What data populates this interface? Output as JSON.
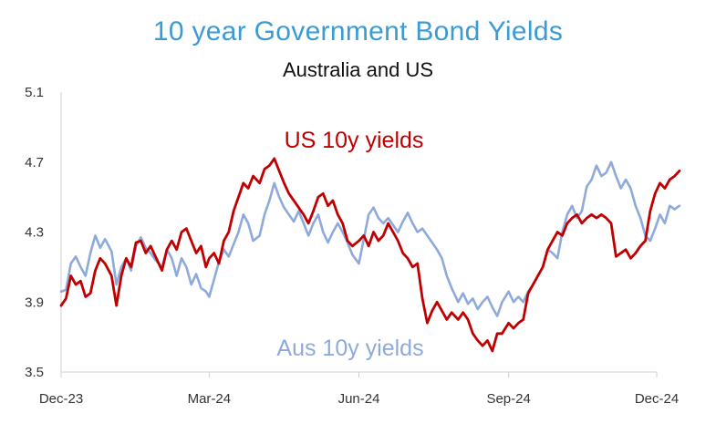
{
  "chart_data": {
    "type": "line",
    "title": "10 year Government Bond Yields",
    "subtitle": "Australia and US",
    "ylim": [
      3.5,
      5.1
    ],
    "yticks": [
      "3.5",
      "3.9",
      "4.3",
      "4.7",
      "5.1"
    ],
    "xlim": [
      "2023-12-01",
      "2024-12-01"
    ],
    "xticks": [
      {
        "date": "2023-12-01",
        "label": "Dec-23"
      },
      {
        "date": "2024-03-01",
        "label": "Mar-24"
      },
      {
        "date": "2024-06-01",
        "label": "Jun-24"
      },
      {
        "date": "2024-09-01",
        "label": "Sep-24"
      },
      {
        "date": "2024-12-01",
        "label": "Dec-24"
      }
    ],
    "grid": false,
    "series": [
      {
        "name": "Aus 10y yields",
        "color": "#8eaadb",
        "points": [
          [
            "2023-12-01",
            3.96
          ],
          [
            "2023-12-04",
            3.97
          ],
          [
            "2023-12-07",
            4.12
          ],
          [
            "2023-12-10",
            4.16
          ],
          [
            "2023-12-13",
            4.1
          ],
          [
            "2023-12-16",
            4.05
          ],
          [
            "2023-12-19",
            4.18
          ],
          [
            "2023-12-22",
            4.28
          ],
          [
            "2023-12-25",
            4.21
          ],
          [
            "2023-12-28",
            4.26
          ],
          [
            "2024-01-01",
            4.19
          ],
          [
            "2024-01-04",
            4.0
          ],
          [
            "2024-01-07",
            4.1
          ],
          [
            "2024-01-10",
            4.15
          ],
          [
            "2024-01-13",
            4.08
          ],
          [
            "2024-01-16",
            4.22
          ],
          [
            "2024-01-19",
            4.27
          ],
          [
            "2024-01-22",
            4.21
          ],
          [
            "2024-01-25",
            4.18
          ],
          [
            "2024-01-28",
            4.14
          ],
          [
            "2024-02-01",
            4.1
          ],
          [
            "2024-02-04",
            4.2
          ],
          [
            "2024-02-07",
            4.15
          ],
          [
            "2024-02-10",
            4.05
          ],
          [
            "2024-02-13",
            4.15
          ],
          [
            "2024-02-16",
            4.1
          ],
          [
            "2024-02-19",
            4.0
          ],
          [
            "2024-02-22",
            4.06
          ],
          [
            "2024-02-25",
            3.98
          ],
          [
            "2024-02-28",
            3.96
          ],
          [
            "2024-03-01",
            3.93
          ],
          [
            "2024-03-04",
            4.03
          ],
          [
            "2024-03-07",
            4.13
          ],
          [
            "2024-03-10",
            4.2
          ],
          [
            "2024-03-13",
            4.16
          ],
          [
            "2024-03-16",
            4.23
          ],
          [
            "2024-03-19",
            4.3
          ],
          [
            "2024-03-22",
            4.4
          ],
          [
            "2024-03-25",
            4.35
          ],
          [
            "2024-03-28",
            4.25
          ],
          [
            "2024-04-01",
            4.28
          ],
          [
            "2024-04-04",
            4.4
          ],
          [
            "2024-04-07",
            4.48
          ],
          [
            "2024-04-10",
            4.58
          ],
          [
            "2024-04-13",
            4.5
          ],
          [
            "2024-04-16",
            4.44
          ],
          [
            "2024-04-19",
            4.4
          ],
          [
            "2024-04-22",
            4.36
          ],
          [
            "2024-04-25",
            4.42
          ],
          [
            "2024-04-28",
            4.35
          ],
          [
            "2024-05-01",
            4.28
          ],
          [
            "2024-05-04",
            4.35
          ],
          [
            "2024-05-07",
            4.4
          ],
          [
            "2024-05-10",
            4.3
          ],
          [
            "2024-05-13",
            4.24
          ],
          [
            "2024-05-16",
            4.3
          ],
          [
            "2024-05-19",
            4.35
          ],
          [
            "2024-05-22",
            4.3
          ],
          [
            "2024-05-25",
            4.24
          ],
          [
            "2024-05-28",
            4.17
          ],
          [
            "2024-06-01",
            4.12
          ],
          [
            "2024-06-04",
            4.26
          ],
          [
            "2024-06-07",
            4.4
          ],
          [
            "2024-06-10",
            4.44
          ],
          [
            "2024-06-13",
            4.38
          ],
          [
            "2024-06-16",
            4.35
          ],
          [
            "2024-06-19",
            4.38
          ],
          [
            "2024-06-22",
            4.34
          ],
          [
            "2024-06-25",
            4.3
          ],
          [
            "2024-06-28",
            4.36
          ],
          [
            "2024-07-01",
            4.41
          ],
          [
            "2024-07-04",
            4.35
          ],
          [
            "2024-07-07",
            4.3
          ],
          [
            "2024-07-10",
            4.32
          ],
          [
            "2024-07-13",
            4.28
          ],
          [
            "2024-07-16",
            4.24
          ],
          [
            "2024-07-19",
            4.2
          ],
          [
            "2024-07-22",
            4.15
          ],
          [
            "2024-07-25",
            4.05
          ],
          [
            "2024-07-28",
            3.98
          ],
          [
            "2024-08-01",
            3.9
          ],
          [
            "2024-08-04",
            3.95
          ],
          [
            "2024-08-07",
            3.89
          ],
          [
            "2024-08-10",
            3.92
          ],
          [
            "2024-08-13",
            3.86
          ],
          [
            "2024-08-16",
            3.9
          ],
          [
            "2024-08-19",
            3.93
          ],
          [
            "2024-08-22",
            3.87
          ],
          [
            "2024-08-25",
            3.82
          ],
          [
            "2024-08-28",
            3.9
          ],
          [
            "2024-09-01",
            3.96
          ],
          [
            "2024-09-04",
            3.9
          ],
          [
            "2024-09-07",
            3.93
          ],
          [
            "2024-09-10",
            3.9
          ],
          [
            "2024-09-13",
            3.96
          ],
          [
            "2024-09-16",
            4.0
          ],
          [
            "2024-09-19",
            4.05
          ],
          [
            "2024-09-22",
            4.1
          ],
          [
            "2024-09-25",
            4.2
          ],
          [
            "2024-09-28",
            4.18
          ],
          [
            "2024-10-01",
            4.15
          ],
          [
            "2024-10-04",
            4.3
          ],
          [
            "2024-10-07",
            4.4
          ],
          [
            "2024-10-10",
            4.45
          ],
          [
            "2024-10-13",
            4.38
          ],
          [
            "2024-10-16",
            4.42
          ],
          [
            "2024-10-19",
            4.56
          ],
          [
            "2024-10-22",
            4.6
          ],
          [
            "2024-10-25",
            4.68
          ],
          [
            "2024-10-28",
            4.62
          ],
          [
            "2024-10-31",
            4.64
          ],
          [
            "2024-11-03",
            4.7
          ],
          [
            "2024-11-06",
            4.62
          ],
          [
            "2024-11-09",
            4.55
          ],
          [
            "2024-11-12",
            4.6
          ],
          [
            "2024-11-15",
            4.55
          ],
          [
            "2024-11-18",
            4.45
          ],
          [
            "2024-11-21",
            4.38
          ],
          [
            "2024-11-24",
            4.28
          ],
          [
            "2024-11-27",
            4.25
          ],
          [
            "2024-11-30",
            4.32
          ],
          [
            "2024-12-03",
            4.4
          ],
          [
            "2024-12-06",
            4.35
          ],
          [
            "2024-12-09",
            4.45
          ],
          [
            "2024-12-12",
            4.43
          ],
          [
            "2024-12-15",
            4.45
          ]
        ]
      },
      {
        "name": "US 10y yields",
        "color": "#c00000",
        "points": [
          [
            "2023-12-01",
            3.88
          ],
          [
            "2023-12-04",
            3.92
          ],
          [
            "2023-12-07",
            4.05
          ],
          [
            "2023-12-10",
            4.0
          ],
          [
            "2023-12-13",
            4.02
          ],
          [
            "2023-12-16",
            3.93
          ],
          [
            "2023-12-19",
            3.95
          ],
          [
            "2023-12-22",
            4.08
          ],
          [
            "2023-12-25",
            4.15
          ],
          [
            "2023-12-28",
            4.12
          ],
          [
            "2024-01-01",
            4.05
          ],
          [
            "2024-01-04",
            3.88
          ],
          [
            "2024-01-07",
            4.05
          ],
          [
            "2024-01-10",
            4.15
          ],
          [
            "2024-01-13",
            4.1
          ],
          [
            "2024-01-16",
            4.24
          ],
          [
            "2024-01-19",
            4.25
          ],
          [
            "2024-01-22",
            4.18
          ],
          [
            "2024-01-25",
            4.22
          ],
          [
            "2024-01-28",
            4.16
          ],
          [
            "2024-02-01",
            4.08
          ],
          [
            "2024-02-04",
            4.2
          ],
          [
            "2024-02-07",
            4.25
          ],
          [
            "2024-02-10",
            4.2
          ],
          [
            "2024-02-13",
            4.3
          ],
          [
            "2024-02-16",
            4.32
          ],
          [
            "2024-02-19",
            4.25
          ],
          [
            "2024-02-22",
            4.18
          ],
          [
            "2024-02-25",
            4.22
          ],
          [
            "2024-02-28",
            4.1
          ],
          [
            "2024-03-01",
            4.15
          ],
          [
            "2024-03-04",
            4.18
          ],
          [
            "2024-03-07",
            4.12
          ],
          [
            "2024-03-10",
            4.25
          ],
          [
            "2024-03-13",
            4.3
          ],
          [
            "2024-03-16",
            4.42
          ],
          [
            "2024-03-19",
            4.5
          ],
          [
            "2024-03-22",
            4.58
          ],
          [
            "2024-03-25",
            4.55
          ],
          [
            "2024-03-28",
            4.62
          ],
          [
            "2024-04-01",
            4.58
          ],
          [
            "2024-04-04",
            4.66
          ],
          [
            "2024-04-07",
            4.68
          ],
          [
            "2024-04-10",
            4.72
          ],
          [
            "2024-04-13",
            4.65
          ],
          [
            "2024-04-16",
            4.58
          ],
          [
            "2024-04-19",
            4.52
          ],
          [
            "2024-04-22",
            4.48
          ],
          [
            "2024-04-25",
            4.44
          ],
          [
            "2024-04-28",
            4.4
          ],
          [
            "2024-05-01",
            4.35
          ],
          [
            "2024-05-04",
            4.42
          ],
          [
            "2024-05-07",
            4.5
          ],
          [
            "2024-05-10",
            4.52
          ],
          [
            "2024-05-13",
            4.45
          ],
          [
            "2024-05-16",
            4.48
          ],
          [
            "2024-05-19",
            4.4
          ],
          [
            "2024-05-22",
            4.35
          ],
          [
            "2024-05-25",
            4.25
          ],
          [
            "2024-05-28",
            4.22
          ],
          [
            "2024-06-01",
            4.25
          ],
          [
            "2024-06-04",
            4.28
          ],
          [
            "2024-06-07",
            4.22
          ],
          [
            "2024-06-10",
            4.3
          ],
          [
            "2024-06-13",
            4.25
          ],
          [
            "2024-06-16",
            4.28
          ],
          [
            "2024-06-19",
            4.35
          ],
          [
            "2024-06-22",
            4.3
          ],
          [
            "2024-06-25",
            4.25
          ],
          [
            "2024-06-28",
            4.18
          ],
          [
            "2024-07-01",
            4.15
          ],
          [
            "2024-07-04",
            4.1
          ],
          [
            "2024-07-07",
            4.12
          ],
          [
            "2024-07-10",
            3.92
          ],
          [
            "2024-07-13",
            3.78
          ],
          [
            "2024-07-16",
            3.85
          ],
          [
            "2024-07-19",
            3.9
          ],
          [
            "2024-07-22",
            3.85
          ],
          [
            "2024-07-25",
            3.8
          ],
          [
            "2024-07-28",
            3.84
          ],
          [
            "2024-08-01",
            3.8
          ],
          [
            "2024-08-04",
            3.84
          ],
          [
            "2024-08-07",
            3.8
          ],
          [
            "2024-08-10",
            3.72
          ],
          [
            "2024-08-13",
            3.68
          ],
          [
            "2024-08-16",
            3.65
          ],
          [
            "2024-08-19",
            3.68
          ],
          [
            "2024-08-22",
            3.62
          ],
          [
            "2024-08-25",
            3.72
          ],
          [
            "2024-08-28",
            3.72
          ],
          [
            "2024-09-01",
            3.78
          ],
          [
            "2024-09-04",
            3.75
          ],
          [
            "2024-09-07",
            3.78
          ],
          [
            "2024-09-10",
            3.8
          ],
          [
            "2024-09-13",
            3.95
          ],
          [
            "2024-09-16",
            4.0
          ],
          [
            "2024-09-19",
            4.05
          ],
          [
            "2024-09-22",
            4.1
          ],
          [
            "2024-09-25",
            4.2
          ],
          [
            "2024-09-28",
            4.25
          ],
          [
            "2024-10-01",
            4.3
          ],
          [
            "2024-10-04",
            4.28
          ],
          [
            "2024-10-07",
            4.35
          ],
          [
            "2024-10-10",
            4.38
          ],
          [
            "2024-10-13",
            4.4
          ],
          [
            "2024-10-16",
            4.35
          ],
          [
            "2024-10-19",
            4.38
          ],
          [
            "2024-10-22",
            4.4
          ],
          [
            "2024-10-25",
            4.38
          ],
          [
            "2024-10-28",
            4.4
          ],
          [
            "2024-10-31",
            4.38
          ],
          [
            "2024-11-03",
            4.35
          ],
          [
            "2024-11-06",
            4.16
          ],
          [
            "2024-11-09",
            4.18
          ],
          [
            "2024-11-12",
            4.2
          ],
          [
            "2024-11-15",
            4.15
          ],
          [
            "2024-11-18",
            4.18
          ],
          [
            "2024-11-21",
            4.22
          ],
          [
            "2024-11-24",
            4.25
          ],
          [
            "2024-11-27",
            4.42
          ],
          [
            "2024-11-30",
            4.52
          ],
          [
            "2024-12-03",
            4.58
          ],
          [
            "2024-12-06",
            4.55
          ],
          [
            "2024-12-09",
            4.6
          ],
          [
            "2024-12-12",
            4.62
          ],
          [
            "2024-12-15",
            4.65
          ]
        ]
      }
    ]
  }
}
